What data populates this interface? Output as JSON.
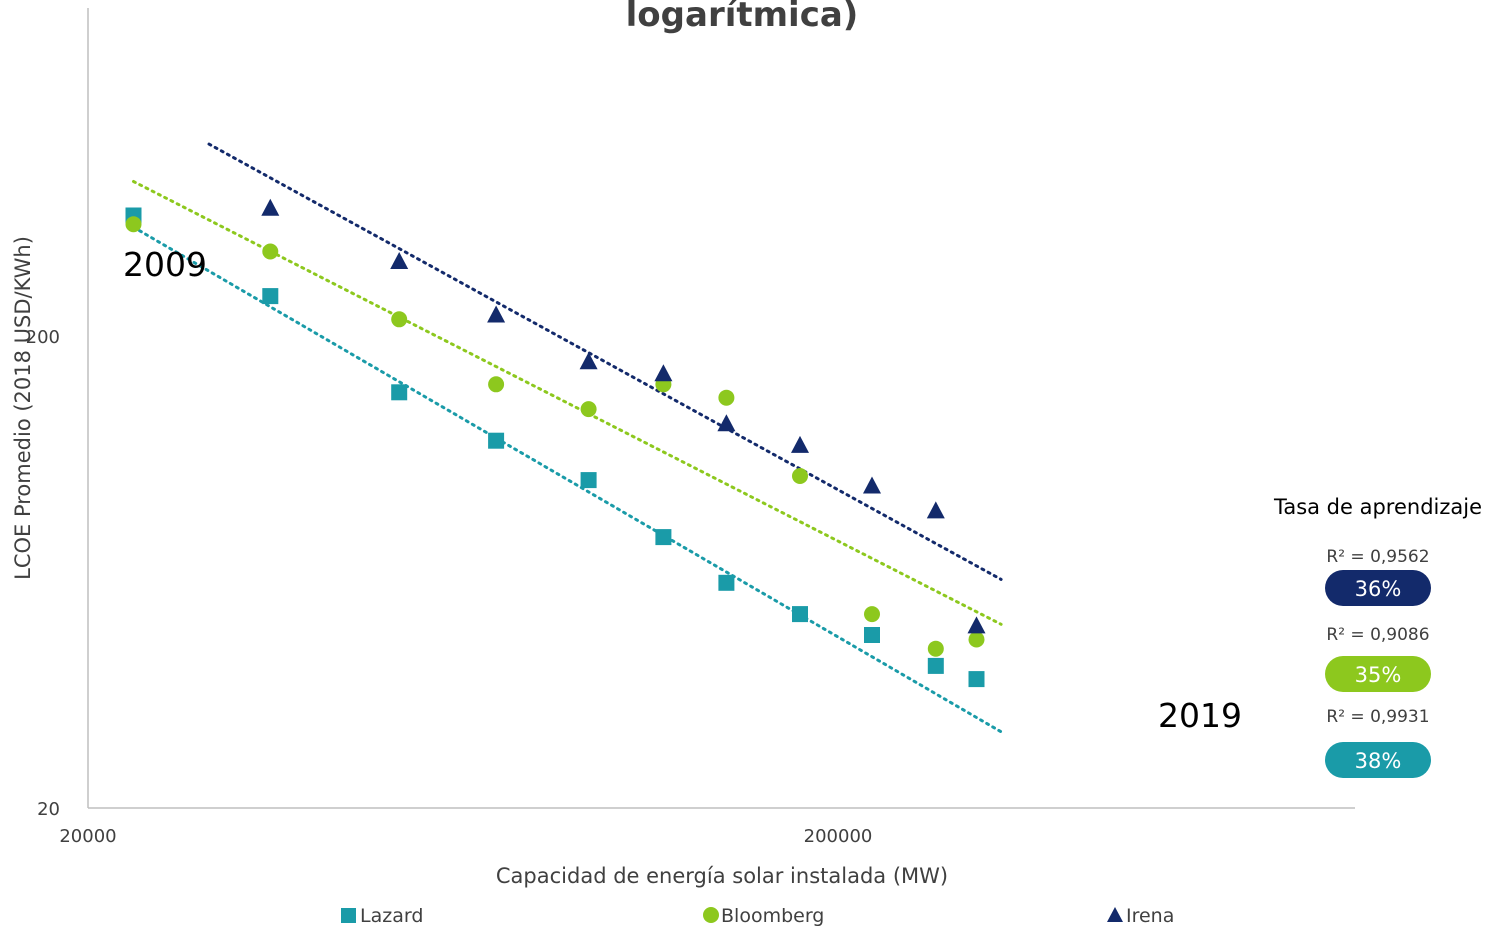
{
  "chart_data": {
    "type": "scatter",
    "title": "logarítmica)",
    "xlabel": "Capacidad de energía solar instalada (MW)",
    "ylabel": "LCOE Promedio (2018 USD/KWh)",
    "x_scale": "log",
    "y_scale": "log",
    "xlim": [
      20000,
      2000000
    ],
    "ylim": [
      20,
      2000
    ],
    "x_ticks": [
      "20000",
      "200000"
    ],
    "y_ticks": [
      "20",
      "200"
    ],
    "grid": false,
    "legend_position": "bottom",
    "series": [
      {
        "name": "Lazard",
        "marker": "square",
        "color": "#1a9ba8",
        "r2_label": "R² = 0,9931",
        "rate_label": "38%",
        "x": [
          23000,
          35000,
          52000,
          70000,
          93000,
          117000,
          142000,
          178000,
          222000,
          270000,
          306000
        ],
        "y": [
          360,
          243,
          152,
          120,
          99,
          75,
          60,
          51.5,
          46.5,
          40,
          37.5
        ],
        "trend": {
          "x": [
            23000,
            330000
          ],
          "y": [
            340,
            29
          ]
        }
      },
      {
        "name": "Bloomberg",
        "marker": "circle",
        "color": "#8dc81e",
        "r2_label": "R² = 0,9086",
        "rate_label": "35%",
        "x": [
          23000,
          35000,
          52000,
          70000,
          93000,
          117000,
          142000,
          178000,
          222000,
          270000,
          306000
        ],
        "y": [
          345,
          302,
          217,
          158,
          140,
          158,
          148,
          101,
          51.5,
          43.5,
          45.5
        ],
        "trend": {
          "x": [
            23000,
            330000
          ],
          "y": [
            425,
            49
          ]
        }
      },
      {
        "name": "Irena",
        "marker": "triangle",
        "color": "#132a6b",
        "r2_label": "R² = 0,9562",
        "rate_label": "36%",
        "x": [
          35000,
          52000,
          70000,
          93000,
          117000,
          142000,
          178000,
          222000,
          270000,
          306000
        ],
        "y": [
          372,
          287,
          221,
          176,
          166,
          130,
          117,
          96,
          85,
          48.5
        ],
        "trend": {
          "x": [
            29000,
            330000
          ],
          "y": [
            510,
            61
          ]
        }
      }
    ],
    "annotations": {
      "start_year": "2009",
      "end_year": "2019",
      "learning_rate_title": "Tasa de aprendizaje"
    }
  }
}
